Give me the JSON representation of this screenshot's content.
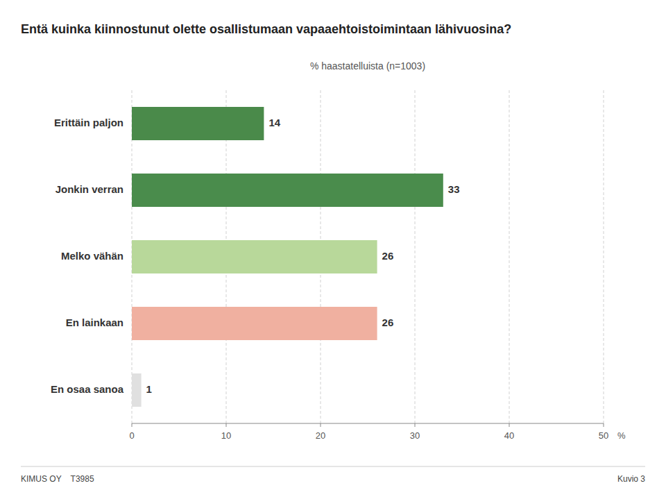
{
  "chart_data": {
    "type": "bar",
    "orientation": "horizontal",
    "title": "Entä kuinka kiinnostunut olette osallistumaan vapaaehtoistoimintaan lähivuosina?",
    "subtitle": "% haastatelluista (n=1003)",
    "categories": [
      "Erittäin paljon",
      "Jonkin verran",
      "Melko vähän",
      "En lainkaan",
      "En osaa sanoa"
    ],
    "values": [
      14,
      33,
      26,
      26,
      1
    ],
    "colors": [
      "#4a8a4a",
      "#4a8c4c",
      "#b8d89a",
      "#f0b0a0",
      "#e0e0e0"
    ],
    "xlim": [
      0,
      50
    ],
    "xticks": [
      0,
      10,
      20,
      30,
      40,
      50
    ],
    "xlabel": "%",
    "grid": true,
    "data_labels": true,
    "annotations": [
      "KIMUS OY    T3985",
      "Kuvio 3"
    ]
  }
}
